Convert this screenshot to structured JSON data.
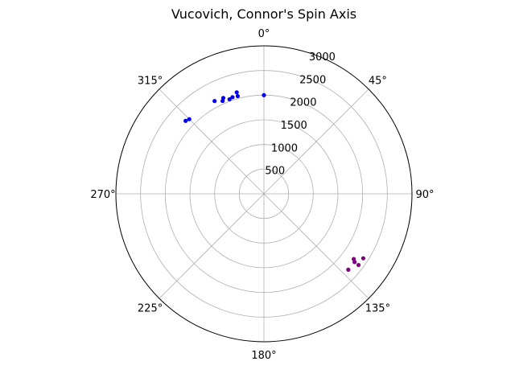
{
  "chart_data": {
    "type": "scatter",
    "projection": "polar",
    "title": "Vucovich, Connor's Spin Axis",
    "theta_zero_location": "top",
    "theta_direction": "clockwise",
    "theta_ticks": [
      {
        "deg": 0,
        "label": "0°"
      },
      {
        "deg": 45,
        "label": "45°"
      },
      {
        "deg": 90,
        "label": "90°"
      },
      {
        "deg": 135,
        "label": "135°"
      },
      {
        "deg": 180,
        "label": "180°"
      },
      {
        "deg": 225,
        "label": "225°"
      },
      {
        "deg": 270,
        "label": "270°"
      },
      {
        "deg": 315,
        "label": "315°"
      }
    ],
    "r_ticks": [
      {
        "value": 500,
        "label": "500"
      },
      {
        "value": 1000,
        "label": "1000"
      },
      {
        "value": 1500,
        "label": "1500"
      },
      {
        "value": 2000,
        "label": "2000"
      },
      {
        "value": 2500,
        "label": "2500"
      },
      {
        "value": 3000,
        "label": "3000"
      }
    ],
    "rlim": [
      0,
      3000
    ],
    "grid": true,
    "series": [
      {
        "color": "#0000ee",
        "points": [
          {
            "theta": 0,
            "r": 2000
          },
          {
            "theta": 345,
            "r": 2130
          },
          {
            "theta": 345,
            "r": 2050
          },
          {
            "theta": 342,
            "r": 2060
          },
          {
            "theta": 340,
            "r": 2040
          },
          {
            "theta": 337,
            "r": 2110
          },
          {
            "theta": 336,
            "r": 2060
          },
          {
            "theta": 332,
            "r": 2130
          },
          {
            "theta": 315,
            "r": 2140
          },
          {
            "theta": 313,
            "r": 2170
          }
        ]
      },
      {
        "color": "#800080",
        "points": [
          {
            "theta": 132,
            "r": 2300
          },
          {
            "theta": 127,
            "r": 2400
          },
          {
            "theta": 123,
            "r": 2400
          },
          {
            "theta": 126,
            "r": 2250
          },
          {
            "theta": 127,
            "r": 2300
          }
        ]
      }
    ]
  }
}
